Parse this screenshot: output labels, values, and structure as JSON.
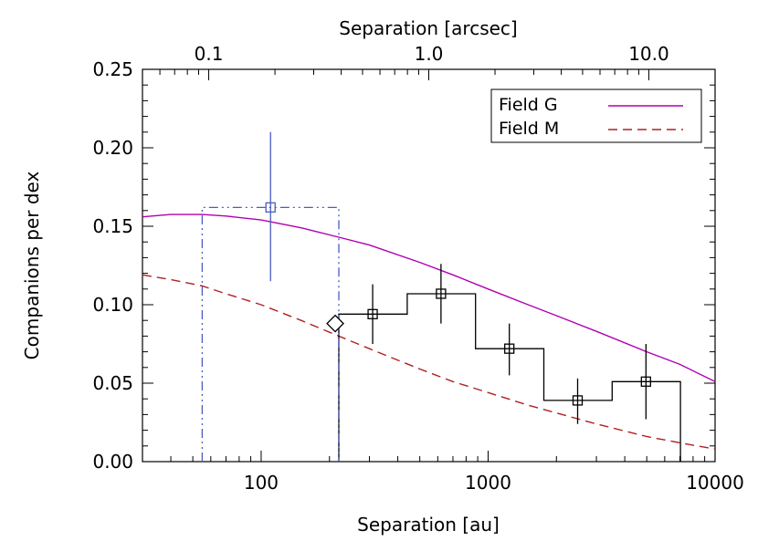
{
  "chart_data": {
    "type": "line",
    "title": "",
    "xlabel": "Separation [au]",
    "ylabel": "Companions per dex",
    "x2label": "Separation [arcsec]",
    "xscale": "log",
    "x2scale": "log",
    "xlim": [
      30,
      10000
    ],
    "ylim": [
      0.0,
      0.25
    ],
    "x2lim": [
      0.05,
      20
    ],
    "grid": false,
    "legend_position": "top-right",
    "xticks": [
      {
        "value": 100,
        "label": "100"
      },
      {
        "value": 1000,
        "label": "1000"
      },
      {
        "value": 10000,
        "label": "10000"
      }
    ],
    "yticks": [
      {
        "value": 0.0,
        "label": "0.00"
      },
      {
        "value": 0.05,
        "label": "0.05"
      },
      {
        "value": 0.1,
        "label": "0.10"
      },
      {
        "value": 0.15,
        "label": "0.15"
      },
      {
        "value": 0.2,
        "label": "0.20"
      },
      {
        "value": 0.25,
        "label": "0.25"
      }
    ],
    "x2ticks": [
      {
        "value": 0.1,
        "label": "0.1"
      },
      {
        "value": 1.0,
        "label": "1.0"
      },
      {
        "value": 10.0,
        "label": "10.0"
      }
    ],
    "curves": [
      {
        "name": "Field G",
        "color": "#b000b0",
        "dash": "solid",
        "x": [
          30,
          40,
          55,
          70,
          100,
          150,
          220,
          300,
          500,
          700,
          1000,
          1500,
          2000,
          3000,
          5000,
          7000,
          10000
        ],
        "y": [
          0.156,
          0.1575,
          0.1575,
          0.1565,
          0.154,
          0.149,
          0.143,
          0.138,
          0.127,
          0.119,
          0.11,
          0.1,
          0.093,
          0.083,
          0.07,
          0.062,
          0.051
        ]
      },
      {
        "name": "Field M",
        "color": "#b02020",
        "dash": "dashed",
        "x": [
          30,
          40,
          55,
          70,
          100,
          150,
          220,
          300,
          500,
          700,
          1000,
          1500,
          2000,
          3000,
          5000,
          7000,
          10000
        ],
        "y": [
          0.119,
          0.116,
          0.112,
          0.107,
          0.1,
          0.09,
          0.08,
          0.072,
          0.059,
          0.051,
          0.044,
          0.036,
          0.031,
          0.024,
          0.016,
          0.012,
          0.008
        ]
      }
    ],
    "histograms": [
      {
        "color": "#000000",
        "style": "solid",
        "bins": [
          {
            "x0": 220,
            "x1": 440,
            "y": 0.094
          },
          {
            "x0": 440,
            "x1": 880,
            "y": 0.107
          },
          {
            "x0": 880,
            "x1": 1760,
            "y": 0.072
          },
          {
            "x0": 1760,
            "x1": 3520,
            "y": 0.039
          },
          {
            "x0": 3520,
            "x1": 7040,
            "y": 0.051
          }
        ]
      },
      {
        "color": "#4a5cc0",
        "style": "dash-dot-dot",
        "bins": [
          {
            "x0": 55,
            "x1": 220,
            "y": 0.162
          }
        ]
      }
    ],
    "points": [
      {
        "x": 110,
        "y": 0.162,
        "ylow": 0.115,
        "yhigh": 0.21,
        "color": "#4a5cc0",
        "marker": "square"
      },
      {
        "x": 310,
        "y": 0.094,
        "ylow": 0.075,
        "yhigh": 0.113,
        "color": "#000000",
        "marker": "square"
      },
      {
        "x": 620,
        "y": 0.107,
        "ylow": 0.088,
        "yhigh": 0.126,
        "color": "#000000",
        "marker": "square"
      },
      {
        "x": 1240,
        "y": 0.072,
        "ylow": 0.055,
        "yhigh": 0.088,
        "color": "#000000",
        "marker": "square"
      },
      {
        "x": 2480,
        "y": 0.039,
        "ylow": 0.024,
        "yhigh": 0.053,
        "color": "#000000",
        "marker": "square"
      },
      {
        "x": 4960,
        "y": 0.051,
        "ylow": 0.027,
        "yhigh": 0.075,
        "color": "#000000",
        "marker": "square"
      },
      {
        "x": 212,
        "y": 0.088,
        "color": "#000000",
        "marker": "diamond"
      }
    ]
  }
}
